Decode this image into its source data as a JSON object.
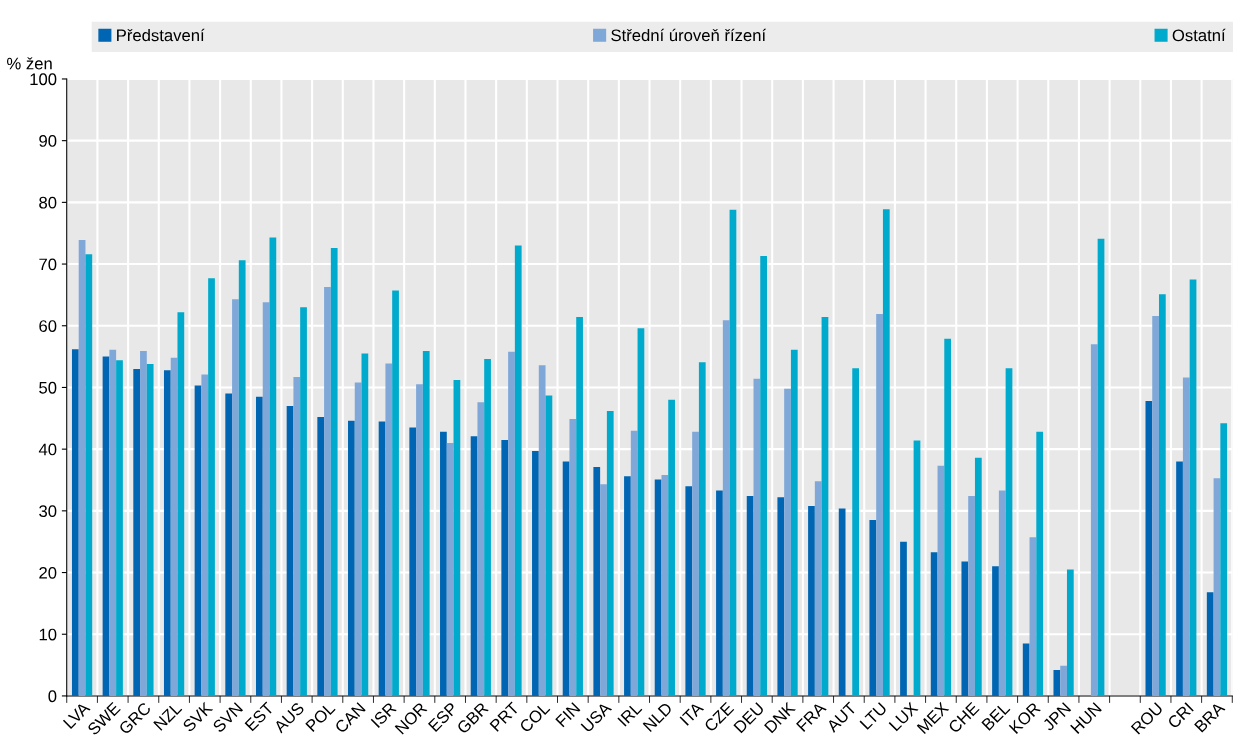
{
  "chart_data": {
    "type": "bar",
    "ylabel": "% žen",
    "categories": [
      "LVA",
      "SWE",
      "GRC",
      "NZL",
      "SVK",
      "SVN",
      "EST",
      "AUS",
      "POL",
      "CAN",
      "ISR",
      "NOR",
      "ESP",
      "GBR",
      "PRT",
      "COL",
      "FIN",
      "USA",
      "IRL",
      "NLD",
      "ITA",
      "CZE",
      "DEU",
      "DNK",
      "FRA",
      "AUT",
      "LTU",
      "LUX",
      "MEX",
      "CHE",
      "BEL",
      "KOR",
      "JPN",
      "HUN",
      null,
      "ROU",
      "CRI",
      "BRA"
    ],
    "series": [
      {
        "name": "Představení",
        "color": "#0066b3",
        "values": [
          56.2,
          55,
          53,
          52.8,
          50.3,
          49,
          48.5,
          47,
          45.2,
          44.6,
          44.5,
          43.5,
          42.8,
          42.1,
          41.5,
          39.7,
          38,
          37.1,
          35.6,
          35.1,
          34,
          33.3,
          32.4,
          32.2,
          30.8,
          30.4,
          28.5,
          25,
          23.3,
          21.8,
          21,
          8.5,
          4.2,
          null,
          null,
          47.8,
          38,
          16.8
        ]
      },
      {
        "name": "Střední úroveň řízení",
        "color": "#7fa8d9",
        "values": [
          73.9,
          56.1,
          55.9,
          54.8,
          52.1,
          64.3,
          63.8,
          51.7,
          66.3,
          50.8,
          53.9,
          50.5,
          41,
          47.6,
          55.8,
          53.6,
          44.9,
          34.3,
          43,
          35.8,
          42.8,
          60.9,
          51.4,
          49.8,
          34.8,
          null,
          61.9,
          null,
          37.3,
          32.4,
          33.3,
          25.7,
          4.9,
          57,
          null,
          61.6,
          51.6,
          35.3
        ]
      },
      {
        "name": "Ostatní",
        "color": "#00aacc",
        "values": [
          71.6,
          54.4,
          53.8,
          62.2,
          67.7,
          70.6,
          74.3,
          63,
          72.6,
          55.5,
          65.7,
          55.9,
          51.2,
          54.6,
          73,
          48.7,
          61.4,
          46.2,
          59.6,
          48,
          54.1,
          78.8,
          71.3,
          56.1,
          61.4,
          53.1,
          78.9,
          41.4,
          57.9,
          38.6,
          53.1,
          42.8,
          20.5,
          74.1,
          null,
          65.1,
          67.5,
          44.2
        ]
      }
    ],
    "ylim": [
      0,
      100
    ],
    "yticks": [
      0,
      10,
      20,
      30,
      40,
      50,
      60,
      70,
      80,
      90,
      100
    ],
    "grid": true,
    "legend": "top"
  }
}
